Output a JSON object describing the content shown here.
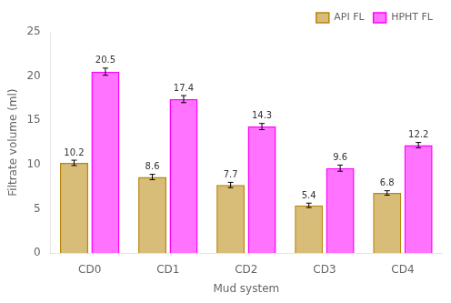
{
  "chart_data": {
    "type": "bar",
    "categories": [
      "CD0",
      "CD1",
      "CD2",
      "CD3",
      "CD4"
    ],
    "series": [
      {
        "name": "API FL",
        "color": "#B8860B",
        "values": [
          10.2,
          8.6,
          7.7,
          5.4,
          6.8
        ],
        "errors": [
          0.3,
          0.3,
          0.3,
          0.25,
          0.25
        ]
      },
      {
        "name": "HPHT FL",
        "color": "#FF00FF",
        "values": [
          20.5,
          17.4,
          14.3,
          9.6,
          12.2
        ],
        "errors": [
          0.4,
          0.4,
          0.35,
          0.35,
          0.3
        ]
      }
    ],
    "xlabel": "Mud system",
    "ylabel": "Filtrate volume (ml)",
    "ylim": [
      0,
      25
    ],
    "yticks": [
      0,
      5,
      10,
      15,
      20,
      25
    ],
    "grid": false,
    "legend": "upper right",
    "data_labels": true
  }
}
